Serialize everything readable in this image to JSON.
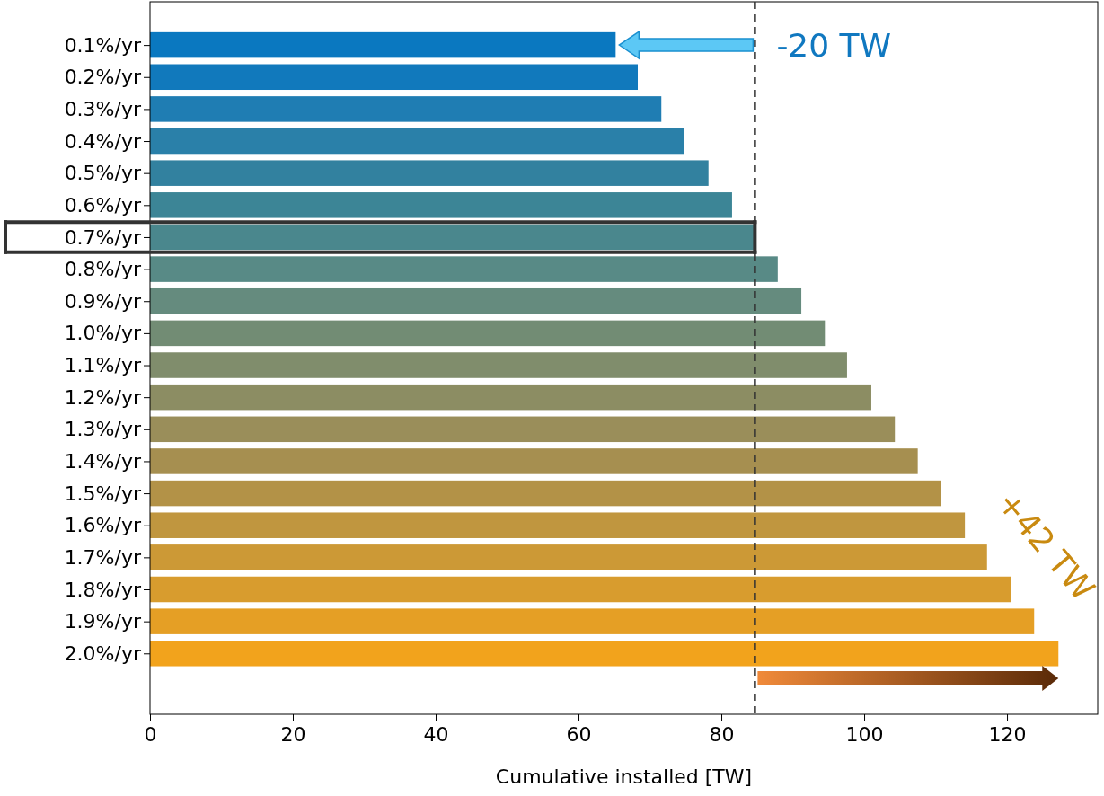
{
  "chart_data": {
    "type": "bar",
    "orientation": "horizontal",
    "xlabel": "Cumulative installed [TW]",
    "categories": [
      "0.1%/yr",
      "0.2%/yr",
      "0.3%/yr",
      "0.4%/yr",
      "0.5%/yr",
      "0.6%/yr",
      "0.7%/yr",
      "0.8%/yr",
      "0.9%/yr",
      "1.0%/yr",
      "1.1%/yr",
      "1.2%/yr",
      "1.3%/yr",
      "1.4%/yr",
      "1.5%/yr",
      "1.6%/yr",
      "1.7%/yr",
      "1.8%/yr",
      "1.9%/yr",
      "2.0%/yr"
    ],
    "values": [
      65.2,
      68.3,
      71.6,
      74.8,
      78.2,
      81.5,
      84.7,
      87.9,
      91.2,
      94.5,
      97.6,
      101,
      104.3,
      107.5,
      110.8,
      114.1,
      117.2,
      120.5,
      123.8,
      127.2
    ],
    "colors": [
      "#0a78c0",
      "#1179bc",
      "#1f7db3",
      "#2a80a9",
      "#32819f",
      "#3c8596",
      "#4a878d",
      "#588a86",
      "#658b7e",
      "#728c74",
      "#808d6c",
      "#8c8d63",
      "#9a8e5a",
      "#a68f50",
      "#b39247",
      "#c0963f",
      "#cc9936",
      "#d89c2e",
      "#e59f25",
      "#f2a31c"
    ],
    "xlim": [
      0,
      132.7
    ],
    "xticks": [
      0,
      20,
      40,
      60,
      80,
      100,
      120
    ],
    "ref_lines": [
      {
        "axis": "x",
        "value": 84.7,
        "color": "#333333",
        "line_style": "dashed"
      }
    ],
    "annotations": [
      "-20 TW",
      "+42 TW"
    ],
    "grid": false
  }
}
